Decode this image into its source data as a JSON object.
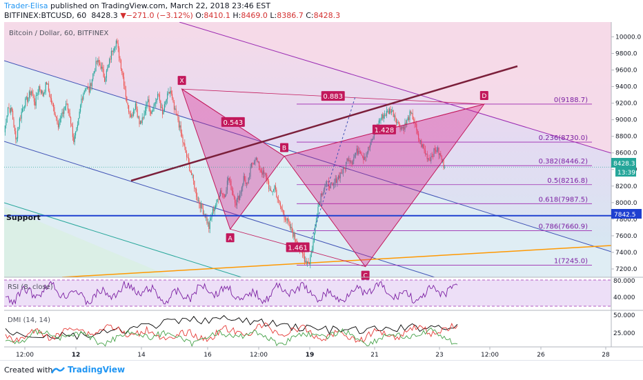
{
  "header": {
    "author": "Trader-Elisa",
    "published_text": " published on TradingView.com, March 22, 2018 23:46 EST",
    "symbol": "BITFINEX:BTCUSD, 60",
    "price": "8428.3",
    "change_arrow": "▼",
    "change": "−271.0 (−3.12%)",
    "o_label": "O:",
    "o_value": "8410.1",
    "h_label": "H:",
    "h_value": "8469.0",
    "l_label": "L:",
    "l_value": "8386.7",
    "c_label": "C:",
    "c_value": "8428.3"
  },
  "chart_data": {
    "type": "candlestick",
    "title": "Bitcoin / Dollar, 60, BITFINEX",
    "x_tick_labels": [
      "12:00",
      "12",
      "14",
      "16",
      "12:00",
      "19",
      "21",
      "23",
      "12:00",
      "26",
      "28"
    ],
    "y_tick_labels": [
      7200,
      7400,
      7600,
      7800,
      8000,
      8200,
      8400,
      8600,
      8800,
      9000,
      9200,
      9400,
      9600,
      9800,
      10000
    ],
    "ylim": [
      7100,
      10060
    ],
    "last_price_label": "8428.3",
    "countdown_label": "13:39",
    "support": {
      "label": "Support",
      "value": 7842.5,
      "price_label": "7842.5"
    },
    "price_path": [
      [
        0,
        8850
      ],
      [
        4,
        9150
      ],
      [
        8,
        9100
      ],
      [
        12,
        8750
      ],
      [
        16,
        9000
      ],
      [
        20,
        9180
      ],
      [
        24,
        9250
      ],
      [
        28,
        9350
      ],
      [
        32,
        9200
      ],
      [
        36,
        9400
      ],
      [
        40,
        9300
      ],
      [
        44,
        9450
      ],
      [
        48,
        9250
      ],
      [
        52,
        9100
      ],
      [
        56,
        8950
      ],
      [
        60,
        9050
      ],
      [
        64,
        9200
      ],
      [
        68,
        9050
      ],
      [
        72,
        8750
      ],
      [
        76,
        8900
      ],
      [
        80,
        9250
      ],
      [
        84,
        9400
      ],
      [
        88,
        9350
      ],
      [
        92,
        9550
      ],
      [
        96,
        9700
      ],
      [
        100,
        9650
      ],
      [
        104,
        9500
      ],
      [
        108,
        9650
      ],
      [
        112,
        9850
      ],
      [
        116,
        9950
      ],
      [
        120,
        9720
      ],
      [
        124,
        9450
      ],
      [
        128,
        9150
      ],
      [
        132,
        9050
      ],
      [
        136,
        9200
      ],
      [
        140,
        8950
      ],
      [
        144,
        9000
      ],
      [
        148,
        9250
      ],
      [
        152,
        9100
      ],
      [
        156,
        9200
      ],
      [
        160,
        9300
      ],
      [
        164,
        9050
      ],
      [
        168,
        9250
      ],
      [
        172,
        9350
      ],
      [
        176,
        9120
      ],
      [
        180,
        9000
      ],
      [
        184,
        8780
      ],
      [
        188,
        8600
      ],
      [
        192,
        8420
      ],
      [
        196,
        8250
      ],
      [
        200,
        8050
      ],
      [
        204,
        7950
      ],
      [
        208,
        7850
      ],
      [
        212,
        7700
      ],
      [
        216,
        7900
      ],
      [
        220,
        8000
      ],
      [
        224,
        8150
      ],
      [
        228,
        8080
      ],
      [
        232,
        8300
      ],
      [
        236,
        8150
      ],
      [
        240,
        8000
      ],
      [
        244,
        8100
      ],
      [
        248,
        8300
      ],
      [
        252,
        8200
      ],
      [
        256,
        8450
      ],
      [
        260,
        8550
      ],
      [
        264,
        8420
      ],
      [
        268,
        8350
      ],
      [
        272,
        8300
      ],
      [
        276,
        8100
      ],
      [
        280,
        8200
      ],
      [
        284,
        8000
      ],
      [
        288,
        7900
      ],
      [
        292,
        7800
      ],
      [
        296,
        7700
      ],
      [
        300,
        7600
      ],
      [
        304,
        7500
      ],
      [
        308,
        7400
      ],
      [
        312,
        7300
      ],
      [
        316,
        7280
      ],
      [
        320,
        7520
      ],
      [
        324,
        7900
      ],
      [
        328,
        8100
      ],
      [
        332,
        8200
      ],
      [
        336,
        8230
      ],
      [
        340,
        8180
      ],
      [
        344,
        8280
      ],
      [
        348,
        8350
      ],
      [
        352,
        8400
      ],
      [
        356,
        8550
      ],
      [
        360,
        8500
      ],
      [
        364,
        8600
      ],
      [
        368,
        8650
      ],
      [
        372,
        8550
      ],
      [
        376,
        8620
      ],
      [
        380,
        8720
      ],
      [
        384,
        8850
      ],
      [
        388,
        8980
      ],
      [
        392,
        9050
      ],
      [
        396,
        9080
      ],
      [
        400,
        9120
      ],
      [
        404,
        9060
      ],
      [
        408,
        8950
      ],
      [
        412,
        8900
      ],
      [
        416,
        8950
      ],
      [
        420,
        9060
      ],
      [
        424,
        9020
      ],
      [
        428,
        8800
      ],
      [
        432,
        8700
      ],
      [
        436,
        8600
      ],
      [
        440,
        8520
      ],
      [
        444,
        8600
      ],
      [
        448,
        8650
      ],
      [
        452,
        8550
      ],
      [
        456,
        8428
      ]
    ],
    "harmonic": {
      "points": [
        {
          "label": "X",
          "i": 184,
          "v": 9370
        },
        {
          "label": "A",
          "i": 234,
          "v": 7680
        },
        {
          "label": "B",
          "i": 290,
          "v": 8560
        },
        {
          "label": "C",
          "i": 374,
          "v": 7228
        },
        {
          "label": "D",
          "i": 497,
          "v": 9188
        }
      ],
      "ratios": [
        "0.543",
        "1.461",
        "1.428",
        "0.883"
      ]
    },
    "fib_levels": [
      {
        "ratio": "0",
        "value": 9188.7,
        "label": "0(9188.7)"
      },
      {
        "ratio": "0.236",
        "value": 8730.0,
        "label": "0.236(8730.0)"
      },
      {
        "ratio": "0.382",
        "value": 8446.2,
        "label": "0.382(8446.2)"
      },
      {
        "ratio": "0.5",
        "value": 8216.8,
        "label": "0.5(8216.8)"
      },
      {
        "ratio": "0.618",
        "value": 7987.5,
        "label": "0.618(7987.5)"
      },
      {
        "ratio": "0.786",
        "value": 7660.9,
        "label": "0.786(7660.9)"
      },
      {
        "ratio": "1",
        "value": 7245.0,
        "label": "1(7245.0)"
      }
    ],
    "rsi": {
      "label": "RSI (8, close)",
      "y_tick_labels": [
        "80.000",
        "40.000"
      ],
      "upper": 80,
      "lower": 20
    },
    "dmi": {
      "label": "DMI (14, 14)",
      "y_tick_labels": [
        "50.000",
        "25.000"
      ]
    },
    "colors": {
      "up": "#26a69a",
      "down": "#ef5350",
      "fib": "#9c27b0",
      "harmonic": "#c2185b",
      "trend": "#7b1f3a",
      "support": "#1e3fd0",
      "orange": "#ff9800",
      "channel_blue": "#3f51b5",
      "channel_green": "#26a69a"
    }
  },
  "footer": {
    "created_with": "Created with",
    "brand": "TradingView"
  }
}
